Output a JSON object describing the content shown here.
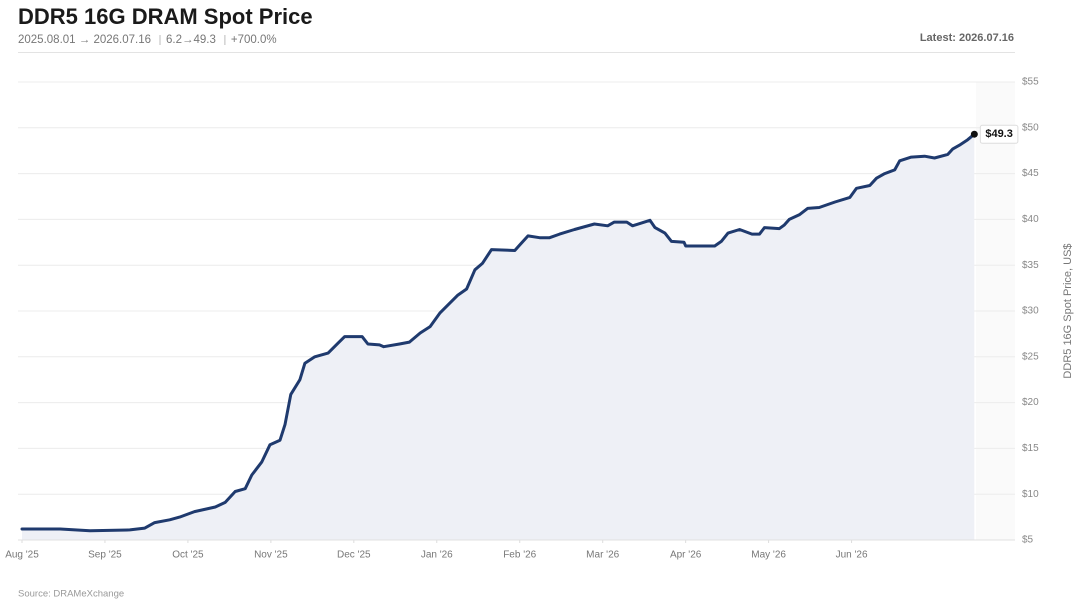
{
  "chart_data": {
    "type": "line",
    "title": "DDR5 16G DRAM Spot Price",
    "subtitle": [
      "2025.08.01 → 2026.07.16",
      "6.2→49.3",
      "+700.0%"
    ],
    "latest": "Latest: 2026.07.16",
    "y_label": "DDR5 16G Spot Price, US$",
    "source": "Source: DRAMeXchange",
    "color": "#1f3a6e",
    "area_color": "#eef0f6",
    "grid": true,
    "xlim": [
      0,
      11.5
    ],
    "xticks": [
      {
        "value": 0,
        "label": "Aug '25"
      },
      {
        "value": 1,
        "label": "Sep '25"
      },
      {
        "value": 2,
        "label": "Oct '25"
      },
      {
        "value": 3,
        "label": "Nov '25"
      },
      {
        "value": 4,
        "label": "Dec '25"
      },
      {
        "value": 5,
        "label": "Jan '26"
      },
      {
        "value": 6,
        "label": "Feb '26"
      },
      {
        "value": 7,
        "label": "Mar '26"
      },
      {
        "value": 8,
        "label": "Apr '26"
      },
      {
        "value": 9,
        "label": "May '26"
      },
      {
        "value": 10,
        "label": "Jun '26"
      }
    ],
    "ylim": [
      5,
      55
    ],
    "yticks": [
      {
        "value": 5,
        "label": "$5"
      },
      {
        "value": 10,
        "label": "$10"
      },
      {
        "value": 15,
        "label": "$15"
      },
      {
        "value": 20,
        "label": "$20"
      },
      {
        "value": 25,
        "label": "$25"
      },
      {
        "value": 30,
        "label": "$30"
      },
      {
        "value": 35,
        "label": "$35"
      },
      {
        "value": 40,
        "label": "$40"
      },
      {
        "value": 45,
        "label": "$45"
      },
      {
        "value": 50,
        "label": "$50"
      },
      {
        "value": 55,
        "label": "$55"
      }
    ],
    "x": [
      0,
      0.46,
      0.82,
      1.3,
      1.48,
      1.6,
      1.78,
      1.9,
      2.08,
      2.33,
      2.45,
      2.57,
      2.69,
      2.77,
      2.89,
      2.99,
      3.11,
      3.17,
      3.24,
      3.35,
      3.41,
      3.53,
      3.69,
      3.81,
      3.89,
      4.1,
      4.17,
      4.31,
      4.36,
      4.55,
      4.67,
      4.8,
      4.92,
      5.04,
      5.16,
      5.25,
      5.36,
      5.46,
      5.55,
      5.66,
      5.94,
      6.0,
      6.1,
      6.24,
      6.36,
      6.48,
      6.66,
      6.9,
      7.06,
      7.14,
      7.29,
      7.36,
      7.57,
      7.63,
      7.75,
      7.83,
      7.98,
      8.0,
      8.35,
      8.43,
      8.51,
      8.65,
      8.8,
      8.89,
      8.95,
      9.13,
      9.19,
      9.25,
      9.37,
      9.47,
      9.61,
      9.8,
      9.98,
      10.06,
      10.22,
      10.3,
      10.4,
      10.52,
      10.58,
      10.72,
      10.88,
      11.0,
      11.16,
      11.22,
      11.3,
      11.4,
      11.48
    ],
    "values": [
      6.2,
      6.2,
      6.0,
      6.1,
      6.3,
      6.9,
      7.2,
      7.5,
      8.1,
      8.6,
      9.1,
      10.3,
      10.6,
      12.1,
      13.5,
      15.4,
      15.9,
      17.6,
      20.9,
      22.5,
      24.3,
      25.0,
      25.4,
      26.5,
      27.2,
      27.2,
      26.4,
      26.3,
      26.1,
      26.4,
      26.6,
      27.6,
      28.3,
      29.8,
      30.9,
      31.7,
      32.4,
      34.5,
      35.2,
      36.7,
      36.6,
      37.2,
      38.2,
      38.0,
      38.0,
      38.4,
      38.9,
      39.5,
      39.3,
      39.7,
      39.7,
      39.3,
      39.9,
      39.1,
      38.5,
      37.6,
      37.5,
      37.1,
      37.1,
      37.6,
      38.5,
      38.9,
      38.4,
      38.4,
      39.1,
      39.0,
      39.4,
      40.0,
      40.5,
      41.2,
      41.3,
      41.9,
      42.4,
      43.4,
      43.7,
      44.5,
      45.0,
      45.4,
      46.4,
      46.8,
      46.9,
      46.7,
      47.1,
      47.7,
      48.1,
      48.7,
      49.3
    ],
    "annotations": [
      {
        "text": "$49.3",
        "x": 11.48,
        "y": 49.3
      }
    ]
  }
}
